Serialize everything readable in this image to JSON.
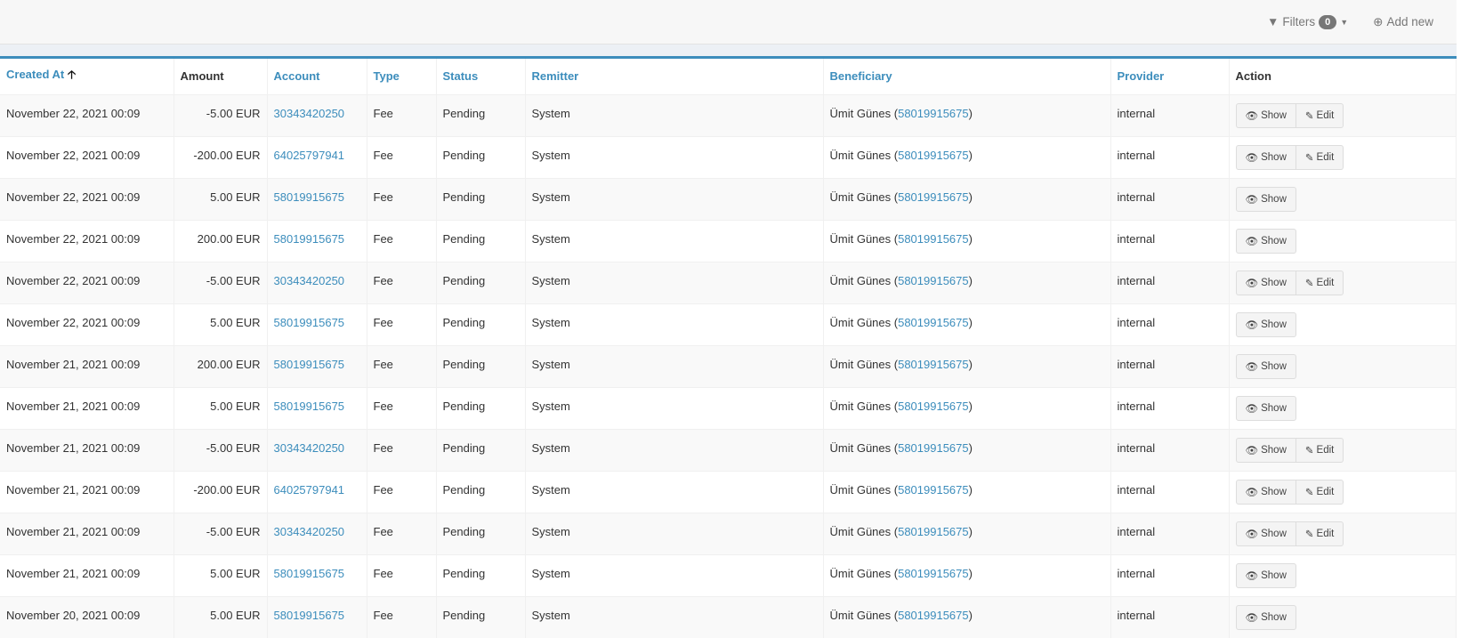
{
  "toolbar": {
    "filters_label": "Filters",
    "filters_count": "0",
    "add_new_label": "Add new"
  },
  "columns": {
    "created_at": "Created At",
    "amount": "Amount",
    "account": "Account",
    "type": "Type",
    "status": "Status",
    "remitter": "Remitter",
    "beneficiary": "Beneficiary",
    "provider": "Provider",
    "action": "Action"
  },
  "actions": {
    "show": "Show",
    "edit": "Edit"
  },
  "rows": [
    {
      "created_at": "November 22, 2021 00:09",
      "amount": "-5.00 EUR",
      "account": "30343420250",
      "type": "Fee",
      "status": "Pending",
      "remitter": "System",
      "beneficiary_name": "Ümit Günes",
      "beneficiary_account": "58019915675",
      "provider": "internal",
      "editable": true
    },
    {
      "created_at": "November 22, 2021 00:09",
      "amount": "-200.00 EUR",
      "account": "64025797941",
      "type": "Fee",
      "status": "Pending",
      "remitter": "System",
      "beneficiary_name": "Ümit Günes",
      "beneficiary_account": "58019915675",
      "provider": "internal",
      "editable": true
    },
    {
      "created_at": "November 22, 2021 00:09",
      "amount": "5.00 EUR",
      "account": "58019915675",
      "type": "Fee",
      "status": "Pending",
      "remitter": "System",
      "beneficiary_name": "Ümit Günes",
      "beneficiary_account": "58019915675",
      "provider": "internal",
      "editable": false
    },
    {
      "created_at": "November 22, 2021 00:09",
      "amount": "200.00 EUR",
      "account": "58019915675",
      "type": "Fee",
      "status": "Pending",
      "remitter": "System",
      "beneficiary_name": "Ümit Günes",
      "beneficiary_account": "58019915675",
      "provider": "internal",
      "editable": false
    },
    {
      "created_at": "November 22, 2021 00:09",
      "amount": "-5.00 EUR",
      "account": "30343420250",
      "type": "Fee",
      "status": "Pending",
      "remitter": "System",
      "beneficiary_name": "Ümit Günes",
      "beneficiary_account": "58019915675",
      "provider": "internal",
      "editable": true
    },
    {
      "created_at": "November 22, 2021 00:09",
      "amount": "5.00 EUR",
      "account": "58019915675",
      "type": "Fee",
      "status": "Pending",
      "remitter": "System",
      "beneficiary_name": "Ümit Günes",
      "beneficiary_account": "58019915675",
      "provider": "internal",
      "editable": false
    },
    {
      "created_at": "November 21, 2021 00:09",
      "amount": "200.00 EUR",
      "account": "58019915675",
      "type": "Fee",
      "status": "Pending",
      "remitter": "System",
      "beneficiary_name": "Ümit Günes",
      "beneficiary_account": "58019915675",
      "provider": "internal",
      "editable": false
    },
    {
      "created_at": "November 21, 2021 00:09",
      "amount": "5.00 EUR",
      "account": "58019915675",
      "type": "Fee",
      "status": "Pending",
      "remitter": "System",
      "beneficiary_name": "Ümit Günes",
      "beneficiary_account": "58019915675",
      "provider": "internal",
      "editable": false
    },
    {
      "created_at": "November 21, 2021 00:09",
      "amount": "-5.00 EUR",
      "account": "30343420250",
      "type": "Fee",
      "status": "Pending",
      "remitter": "System",
      "beneficiary_name": "Ümit Günes",
      "beneficiary_account": "58019915675",
      "provider": "internal",
      "editable": true
    },
    {
      "created_at": "November 21, 2021 00:09",
      "amount": "-200.00 EUR",
      "account": "64025797941",
      "type": "Fee",
      "status": "Pending",
      "remitter": "System",
      "beneficiary_name": "Ümit Günes",
      "beneficiary_account": "58019915675",
      "provider": "internal",
      "editable": true
    },
    {
      "created_at": "November 21, 2021 00:09",
      "amount": "-5.00 EUR",
      "account": "30343420250",
      "type": "Fee",
      "status": "Pending",
      "remitter": "System",
      "beneficiary_name": "Ümit Günes",
      "beneficiary_account": "58019915675",
      "provider": "internal",
      "editable": true
    },
    {
      "created_at": "November 21, 2021 00:09",
      "amount": "5.00 EUR",
      "account": "58019915675",
      "type": "Fee",
      "status": "Pending",
      "remitter": "System",
      "beneficiary_name": "Ümit Günes",
      "beneficiary_account": "58019915675",
      "provider": "internal",
      "editable": false
    },
    {
      "created_at": "November 20, 2021 00:09",
      "amount": "5.00 EUR",
      "account": "58019915675",
      "type": "Fee",
      "status": "Pending",
      "remitter": "System",
      "beneficiary_name": "Ümit Günes",
      "beneficiary_account": "58019915675",
      "provider": "internal",
      "editable": false
    }
  ]
}
